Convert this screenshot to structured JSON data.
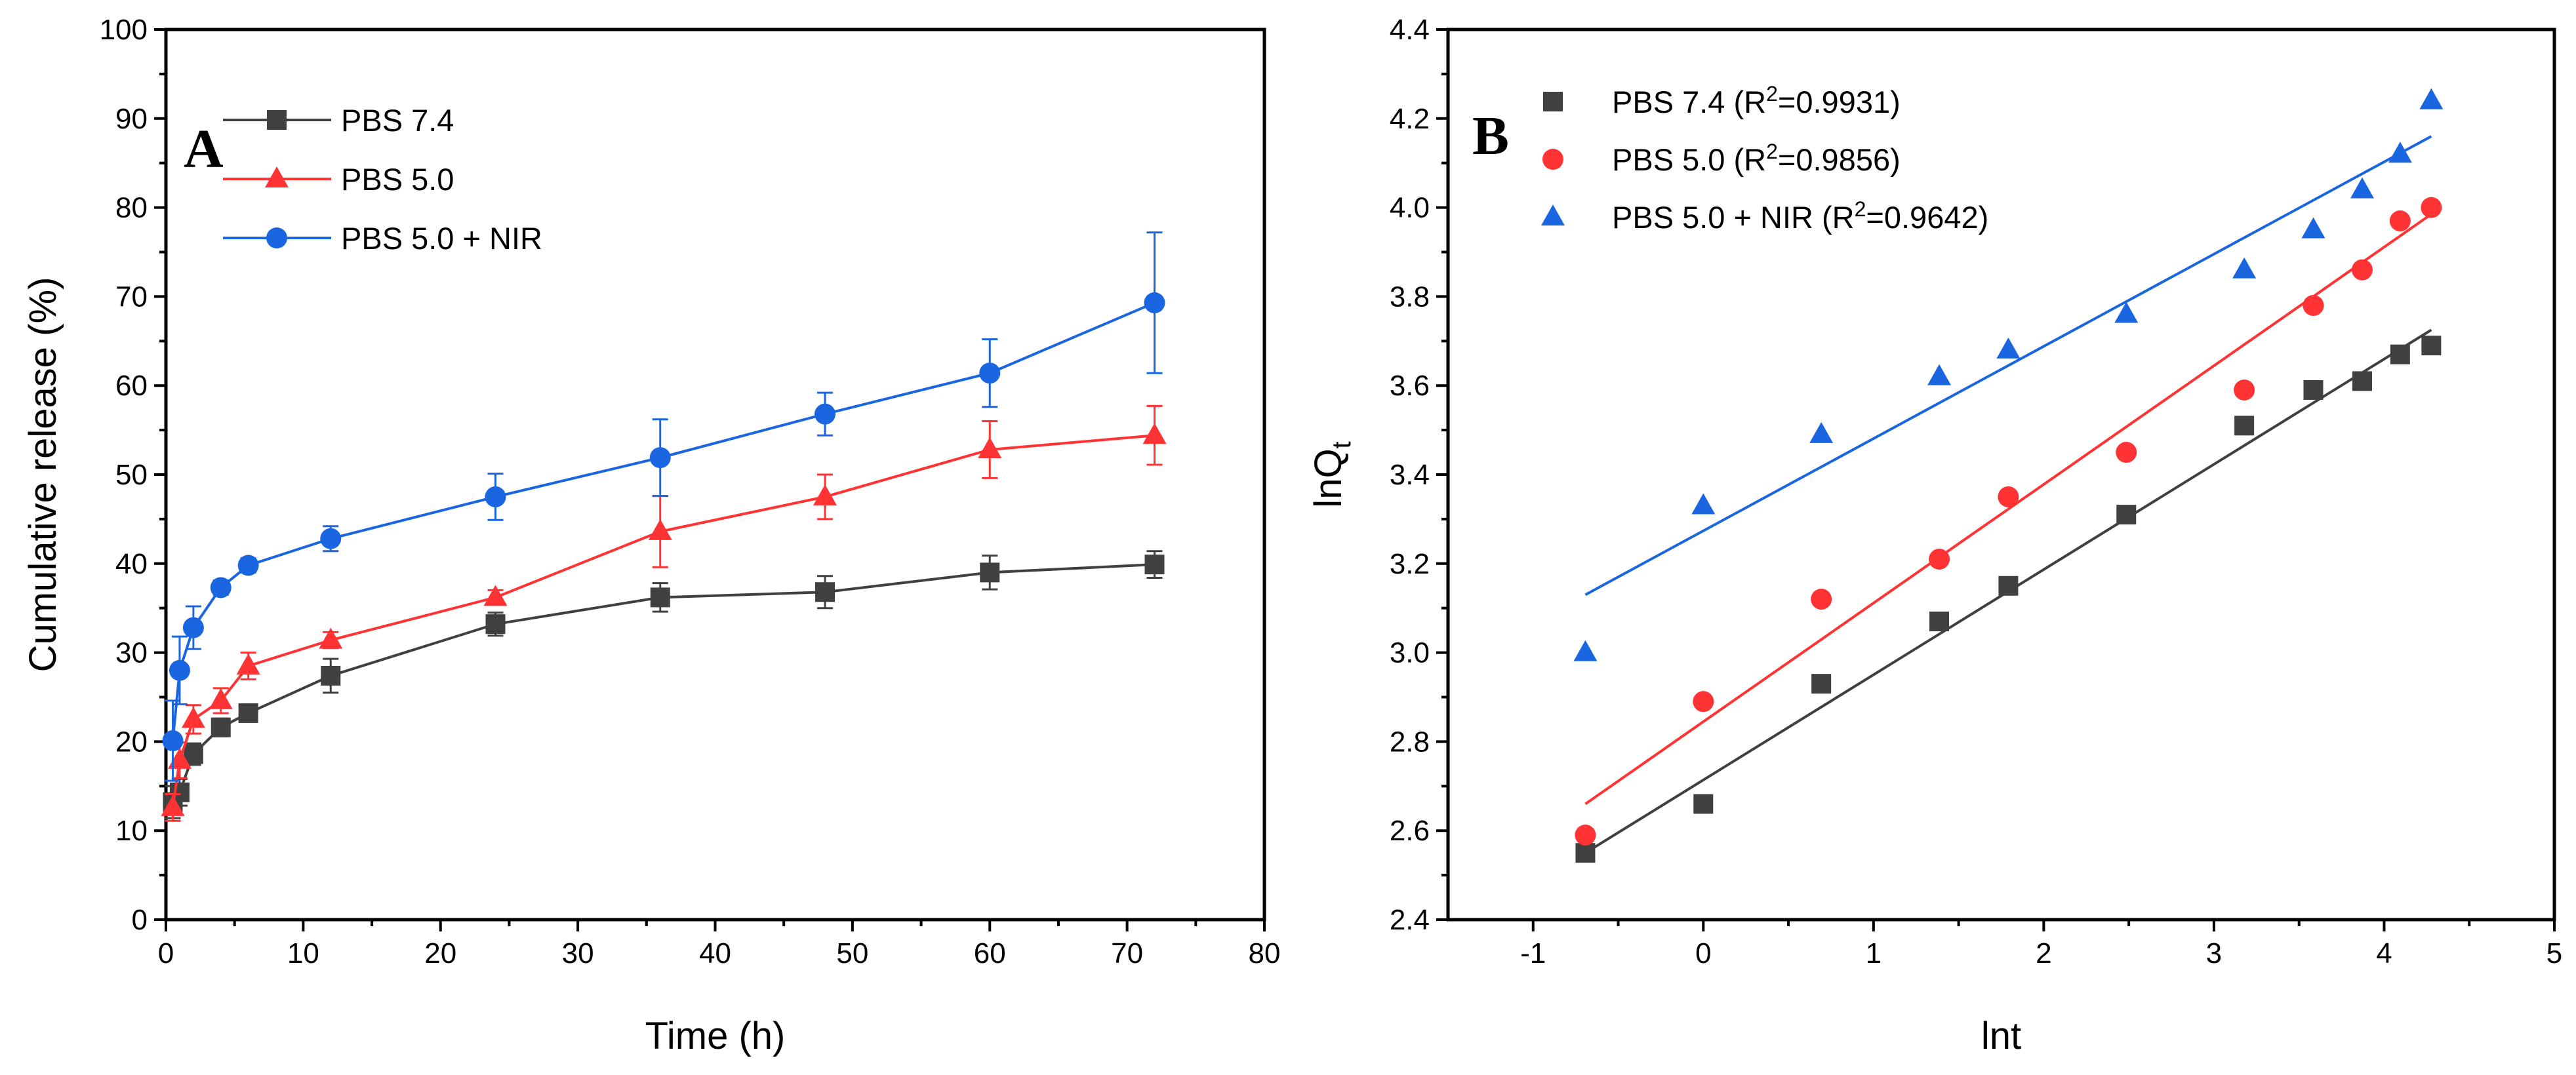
{
  "chart_data": [
    {
      "type": "line",
      "panel_label": "A",
      "xlabel": "Time (h)",
      "ylabel": "Cumulative release (%)",
      "xlim": [
        0,
        80
      ],
      "ylim": [
        0,
        100
      ],
      "xticks": [
        "0",
        "10",
        "20",
        "30",
        "40",
        "50",
        "60",
        "70",
        "80"
      ],
      "yticks": [
        "0",
        "10",
        "20",
        "30",
        "40",
        "50",
        "60",
        "70",
        "80",
        "90",
        "100"
      ],
      "legend_position": "top-left",
      "series": [
        {
          "name": "PBS 7.4",
          "color": "#404040",
          "marker": "square",
          "x": [
            0.5,
            1,
            2,
            4,
            6,
            12,
            24,
            36,
            48,
            60,
            72
          ],
          "values": [
            13.2,
            14.3,
            18.6,
            21.6,
            23.2,
            27.4,
            33.2,
            36.2,
            36.8,
            39.0,
            39.9
          ],
          "errors": [
            1.8,
            1.5,
            1.2,
            1.0,
            0.9,
            1.9,
            1.3,
            1.6,
            1.8,
            1.9,
            1.5
          ]
        },
        {
          "name": "PBS 5.0",
          "color": "#ff3333",
          "marker": "triangle",
          "x": [
            0.5,
            1,
            2,
            4,
            6,
            12,
            24,
            36,
            48,
            60,
            72
          ],
          "values": [
            12.6,
            17.9,
            22.5,
            24.6,
            28.5,
            31.4,
            36.2,
            43.6,
            47.5,
            52.8,
            54.4
          ],
          "errors": [
            1.5,
            2.0,
            1.6,
            1.4,
            1.5,
            0.9,
            0.8,
            4.0,
            2.5,
            3.2,
            3.3
          ]
        },
        {
          "name": "PBS 5.0 + NIR",
          "color": "#1a66e0",
          "marker": "circle",
          "x": [
            0.5,
            1,
            2,
            4,
            6,
            12,
            24,
            36,
            48,
            60,
            72
          ],
          "values": [
            20.1,
            28.0,
            32.8,
            37.3,
            39.8,
            42.8,
            47.5,
            51.9,
            56.8,
            61.4,
            69.3
          ],
          "errors": [
            4.5,
            3.8,
            2.4,
            0.8,
            0.8,
            1.4,
            2.6,
            4.3,
            2.4,
            3.8,
            7.9
          ]
        }
      ]
    },
    {
      "type": "scatter",
      "panel_label": "B",
      "xlabel": "lnt",
      "ylabel_main": "lnQ",
      "ylabel_sub": "t",
      "xlim": [
        -1.5,
        5
      ],
      "ylim": [
        2.4,
        4.4
      ],
      "xticks": [
        "-1",
        "0",
        "1",
        "2",
        "3",
        "4",
        "5"
      ],
      "yticks": [
        "2.4",
        "2.6",
        "2.8",
        "3.0",
        "3.2",
        "3.4",
        "3.6",
        "3.8",
        "4.0",
        "4.2",
        "4.4"
      ],
      "legend_position": "top-left",
      "series": [
        {
          "name": "PBS 7.4",
          "r2_prefix": " (R",
          "r2_sup": "2",
          "r2_value": "=0.9931)",
          "color": "#404040",
          "marker": "square",
          "x": [
            -0.693,
            0,
            0.693,
            1.386,
            1.792,
            2.485,
            3.178,
            3.584,
            3.871,
            4.094,
            4.277
          ],
          "values": [
            2.55,
            2.66,
            2.93,
            3.07,
            3.15,
            3.31,
            3.51,
            3.59,
            3.61,
            3.67,
            3.69
          ],
          "fit": [
            [
              -0.693,
              2.55
            ],
            [
              4.277,
              3.725
            ]
          ]
        },
        {
          "name": "PBS 5.0",
          "r2_prefix": " (R",
          "r2_sup": "2",
          "r2_value": "=0.9856)",
          "color": "#ff3333",
          "marker": "circle",
          "x": [
            -0.693,
            0,
            0.693,
            1.386,
            1.792,
            2.485,
            3.178,
            3.584,
            3.871,
            4.094,
            4.277
          ],
          "values": [
            2.59,
            2.89,
            3.12,
            3.21,
            3.35,
            3.45,
            3.59,
            3.78,
            3.86,
            3.97,
            4.0
          ],
          "fit": [
            [
              -0.693,
              2.66
            ],
            [
              4.277,
              3.985
            ]
          ]
        },
        {
          "name": "PBS 5.0 + NIR",
          "r2_prefix": " (R",
          "r2_sup": "2",
          "r2_value": "=0.9642)",
          "color": "#1a66e0",
          "marker": "triangle",
          "x": [
            -0.693,
            0,
            0.693,
            1.386,
            1.792,
            2.485,
            3.178,
            3.584,
            3.871,
            4.094,
            4.277
          ],
          "values": [
            3.0,
            3.33,
            3.49,
            3.62,
            3.68,
            3.76,
            3.86,
            3.95,
            4.04,
            4.12,
            4.24
          ],
          "fit": [
            [
              -0.693,
              3.13
            ],
            [
              4.277,
              4.16
            ]
          ]
        }
      ]
    }
  ]
}
